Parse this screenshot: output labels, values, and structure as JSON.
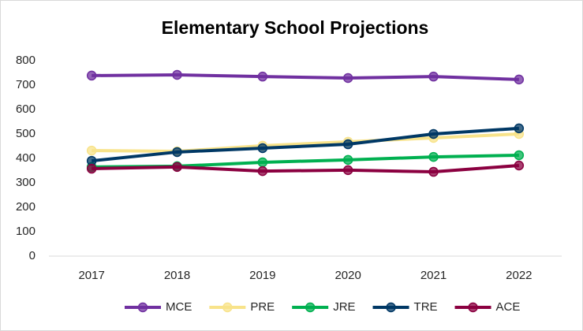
{
  "chart_data": {
    "type": "line",
    "title": "Elementary School Projections",
    "categories": [
      "2017",
      "2018",
      "2019",
      "2020",
      "2021",
      "2022"
    ],
    "series": [
      {
        "name": "MCE",
        "color": "#7030a0",
        "values": [
          739,
          742,
          735,
          729,
          735,
          723
        ]
      },
      {
        "name": "PRE",
        "color": "#f8e38a",
        "values": [
          432,
          429,
          452,
          468,
          484,
          500
        ]
      },
      {
        "name": "JRE",
        "color": "#00b050",
        "values": [
          365,
          368,
          384,
          394,
          406,
          413
        ]
      },
      {
        "name": "TRE",
        "color": "#003865",
        "values": [
          390,
          426,
          442,
          458,
          500,
          523
        ]
      },
      {
        "name": "ACE",
        "color": "#8b0040",
        "values": [
          358,
          365,
          348,
          352,
          345,
          371
        ]
      }
    ],
    "ylim": [
      0,
      800
    ],
    "yticks": [
      0,
      100,
      200,
      300,
      400,
      500,
      600,
      700,
      800
    ],
    "grid": false,
    "legend": "bottom"
  }
}
